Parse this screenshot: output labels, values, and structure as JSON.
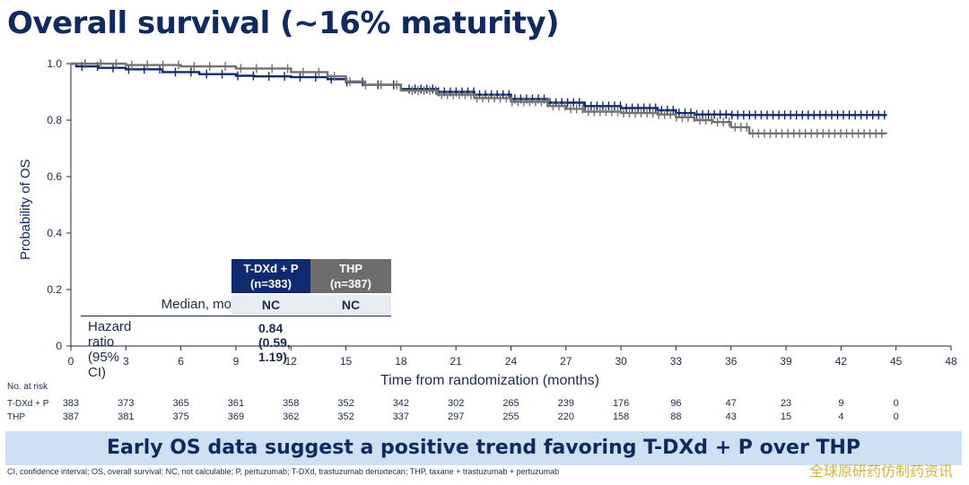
{
  "title": "Overall survival (~16% maturity)",
  "chart_data": {
    "type": "line",
    "subtype": "kaplan-meier",
    "xlabel": "Time from randomization (months)",
    "ylabel": "Probability of OS",
    "xlim": [
      0,
      48
    ],
    "ylim": [
      0,
      1.0
    ],
    "x_ticks": [
      "0",
      "3",
      "6",
      "9",
      "12",
      "15",
      "18",
      "21",
      "24",
      "27",
      "30",
      "33",
      "36",
      "39",
      "42",
      "45",
      "48"
    ],
    "y_ticks": [
      "0",
      "0.2",
      "0.4",
      "0.6",
      "0.8",
      "1.0"
    ],
    "series": [
      {
        "name": "T-DXd + P",
        "color": "#0f2a6e",
        "points": [
          [
            0,
            1.0
          ],
          [
            0.3,
            0.99
          ],
          [
            1.5,
            0.985
          ],
          [
            3,
            0.98
          ],
          [
            5,
            0.97
          ],
          [
            7,
            0.963
          ],
          [
            9,
            0.957
          ],
          [
            10,
            0.955
          ],
          [
            12,
            0.952
          ],
          [
            14,
            0.945
          ],
          [
            15,
            0.935
          ],
          [
            16,
            0.925
          ],
          [
            18,
            0.91
          ],
          [
            20,
            0.9
          ],
          [
            22,
            0.89
          ],
          [
            24,
            0.875
          ],
          [
            26,
            0.862
          ],
          [
            28,
            0.85
          ],
          [
            30,
            0.843
          ],
          [
            32,
            0.835
          ],
          [
            33,
            0.825
          ],
          [
            34,
            0.82
          ],
          [
            36,
            0.818
          ],
          [
            40,
            0.818
          ],
          [
            44.5,
            0.818
          ]
        ]
      },
      {
        "name": "THP",
        "color": "#727272",
        "points": [
          [
            0,
            1.0
          ],
          [
            3,
            0.995
          ],
          [
            6,
            0.99
          ],
          [
            9,
            0.983
          ],
          [
            12,
            0.97
          ],
          [
            14,
            0.955
          ],
          [
            15,
            0.937
          ],
          [
            16,
            0.925
          ],
          [
            18,
            0.905
          ],
          [
            20,
            0.89
          ],
          [
            22,
            0.878
          ],
          [
            24,
            0.865
          ],
          [
            26,
            0.85
          ],
          [
            27,
            0.84
          ],
          [
            28,
            0.83
          ],
          [
            30,
            0.825
          ],
          [
            32,
            0.82
          ],
          [
            33,
            0.81
          ],
          [
            34,
            0.8
          ],
          [
            35,
            0.793
          ],
          [
            36,
            0.775
          ],
          [
            37,
            0.753
          ],
          [
            40,
            0.753
          ],
          [
            44.5,
            0.753
          ]
        ]
      }
    ]
  },
  "stats": {
    "arm_a_header_line1": "T-DXd + P",
    "arm_a_header_line2": "(n=383)",
    "arm_b_header_line1": "THP",
    "arm_b_header_line2": "(n=387)",
    "median_label": "Median, mo",
    "median_a": "NC",
    "median_b": "NC",
    "hr_label": "Hazard ratio (95% CI)",
    "hr_value": "0.84 (0.59, 1.19)"
  },
  "at_risk": {
    "title": "No. at risk",
    "rows": [
      {
        "label": "T-DXd + P",
        "values": [
          "383",
          "373",
          "365",
          "361",
          "358",
          "352",
          "342",
          "302",
          "265",
          "239",
          "176",
          "96",
          "47",
          "23",
          "9",
          "0"
        ]
      },
      {
        "label": "THP",
        "values": [
          "387",
          "381",
          "375",
          "369",
          "362",
          "352",
          "337",
          "297",
          "255",
          "220",
          "158",
          "88",
          "43",
          "15",
          "4",
          "0"
        ]
      }
    ]
  },
  "banner": "Early OS data suggest a positive trend favoring T-DXd + P over THP",
  "footnote": "CI, confidence interval; OS, overall survival; NC, not calculable; P, pertuzumab; T-DXd, trastuzumab deruxtecan; THP, taxane + trastuzumab + pertuzumab",
  "watermark": "全球原研药仿制药资讯"
}
